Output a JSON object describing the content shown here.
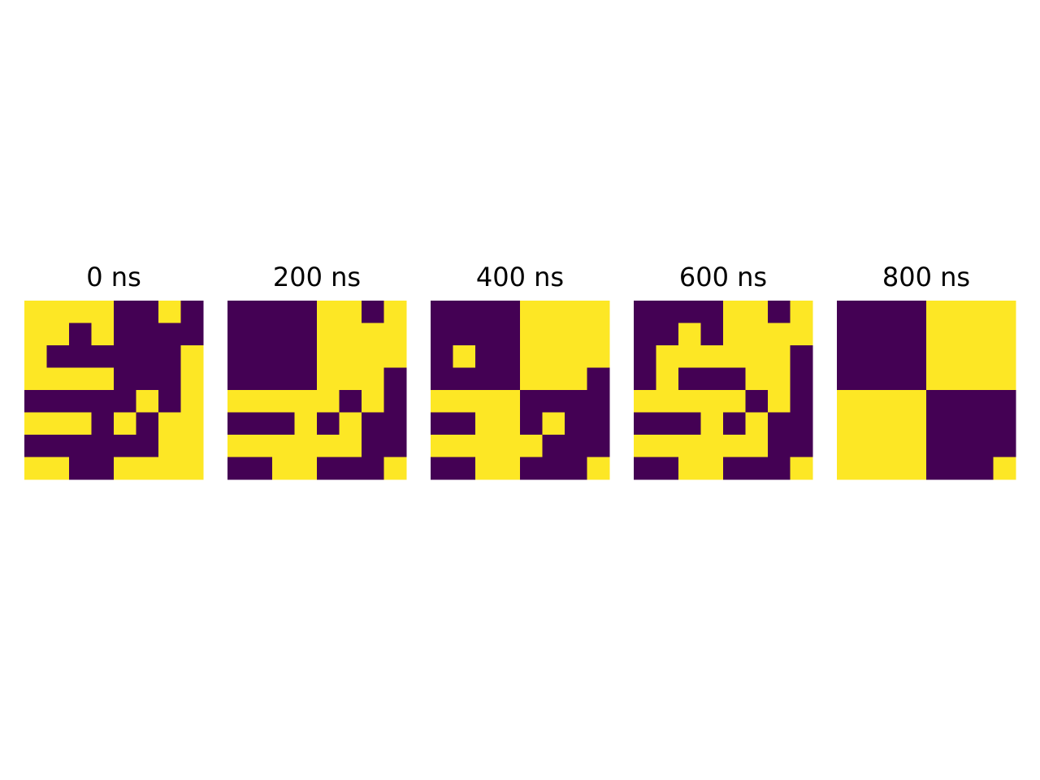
{
  "chart_data": {
    "type": "heatmap",
    "grid_rows": 8,
    "grid_cols": 8,
    "colors": {
      "0": "#440154",
      "1": "#fde725"
    },
    "panels": [
      {
        "title": "0 ns",
        "cells": [
          [
            1,
            1,
            1,
            1,
            0,
            0,
            1,
            0
          ],
          [
            1,
            1,
            0,
            1,
            0,
            0,
            0,
            0
          ],
          [
            1,
            0,
            0,
            0,
            0,
            0,
            0,
            1
          ],
          [
            1,
            1,
            1,
            1,
            0,
            0,
            0,
            1
          ],
          [
            0,
            0,
            0,
            0,
            0,
            1,
            0,
            1
          ],
          [
            1,
            1,
            1,
            0,
            1,
            0,
            1,
            1
          ],
          [
            0,
            0,
            0,
            0,
            0,
            0,
            1,
            1
          ],
          [
            1,
            1,
            0,
            0,
            1,
            1,
            1,
            1
          ]
        ]
      },
      {
        "title": "200 ns",
        "cells": [
          [
            0,
            0,
            0,
            0,
            1,
            1,
            0,
            1
          ],
          [
            0,
            0,
            0,
            0,
            1,
            1,
            1,
            1
          ],
          [
            0,
            0,
            0,
            0,
            1,
            1,
            1,
            1
          ],
          [
            0,
            0,
            0,
            0,
            1,
            1,
            1,
            0
          ],
          [
            1,
            1,
            1,
            1,
            1,
            0,
            1,
            0
          ],
          [
            0,
            0,
            0,
            1,
            0,
            1,
            0,
            0
          ],
          [
            1,
            1,
            1,
            1,
            1,
            1,
            0,
            0
          ],
          [
            0,
            0,
            1,
            1,
            0,
            0,
            0,
            1
          ]
        ]
      },
      {
        "title": "400 ns",
        "cells": [
          [
            0,
            0,
            0,
            0,
            1,
            1,
            1,
            1
          ],
          [
            0,
            0,
            0,
            0,
            1,
            1,
            1,
            1
          ],
          [
            0,
            1,
            0,
            0,
            1,
            1,
            1,
            1
          ],
          [
            0,
            0,
            0,
            0,
            1,
            1,
            1,
            0
          ],
          [
            1,
            1,
            1,
            1,
            0,
            0,
            0,
            0
          ],
          [
            0,
            0,
            1,
            1,
            0,
            1,
            0,
            0
          ],
          [
            1,
            1,
            1,
            1,
            1,
            0,
            0,
            0
          ],
          [
            0,
            0,
            1,
            1,
            0,
            0,
            0,
            1
          ]
        ]
      },
      {
        "title": "600 ns",
        "cells": [
          [
            0,
            0,
            0,
            0,
            1,
            1,
            0,
            1
          ],
          [
            0,
            0,
            1,
            0,
            1,
            1,
            1,
            1
          ],
          [
            0,
            1,
            1,
            1,
            1,
            1,
            1,
            0
          ],
          [
            0,
            1,
            0,
            0,
            0,
            1,
            1,
            0
          ],
          [
            1,
            1,
            1,
            1,
            1,
            0,
            1,
            0
          ],
          [
            0,
            0,
            0,
            1,
            0,
            1,
            0,
            0
          ],
          [
            1,
            1,
            1,
            1,
            1,
            1,
            0,
            0
          ],
          [
            0,
            0,
            1,
            1,
            0,
            0,
            0,
            1
          ]
        ]
      },
      {
        "title": "800 ns",
        "cells": [
          [
            0,
            0,
            0,
            0,
            1,
            1,
            1,
            1
          ],
          [
            0,
            0,
            0,
            0,
            1,
            1,
            1,
            1
          ],
          [
            0,
            0,
            0,
            0,
            1,
            1,
            1,
            1
          ],
          [
            0,
            0,
            0,
            0,
            1,
            1,
            1,
            1
          ],
          [
            1,
            1,
            1,
            1,
            0,
            0,
            0,
            0
          ],
          [
            1,
            1,
            1,
            1,
            0,
            0,
            0,
            0
          ],
          [
            1,
            1,
            1,
            1,
            0,
            0,
            0,
            0
          ],
          [
            1,
            1,
            1,
            1,
            0,
            0,
            0,
            1
          ]
        ]
      }
    ]
  }
}
